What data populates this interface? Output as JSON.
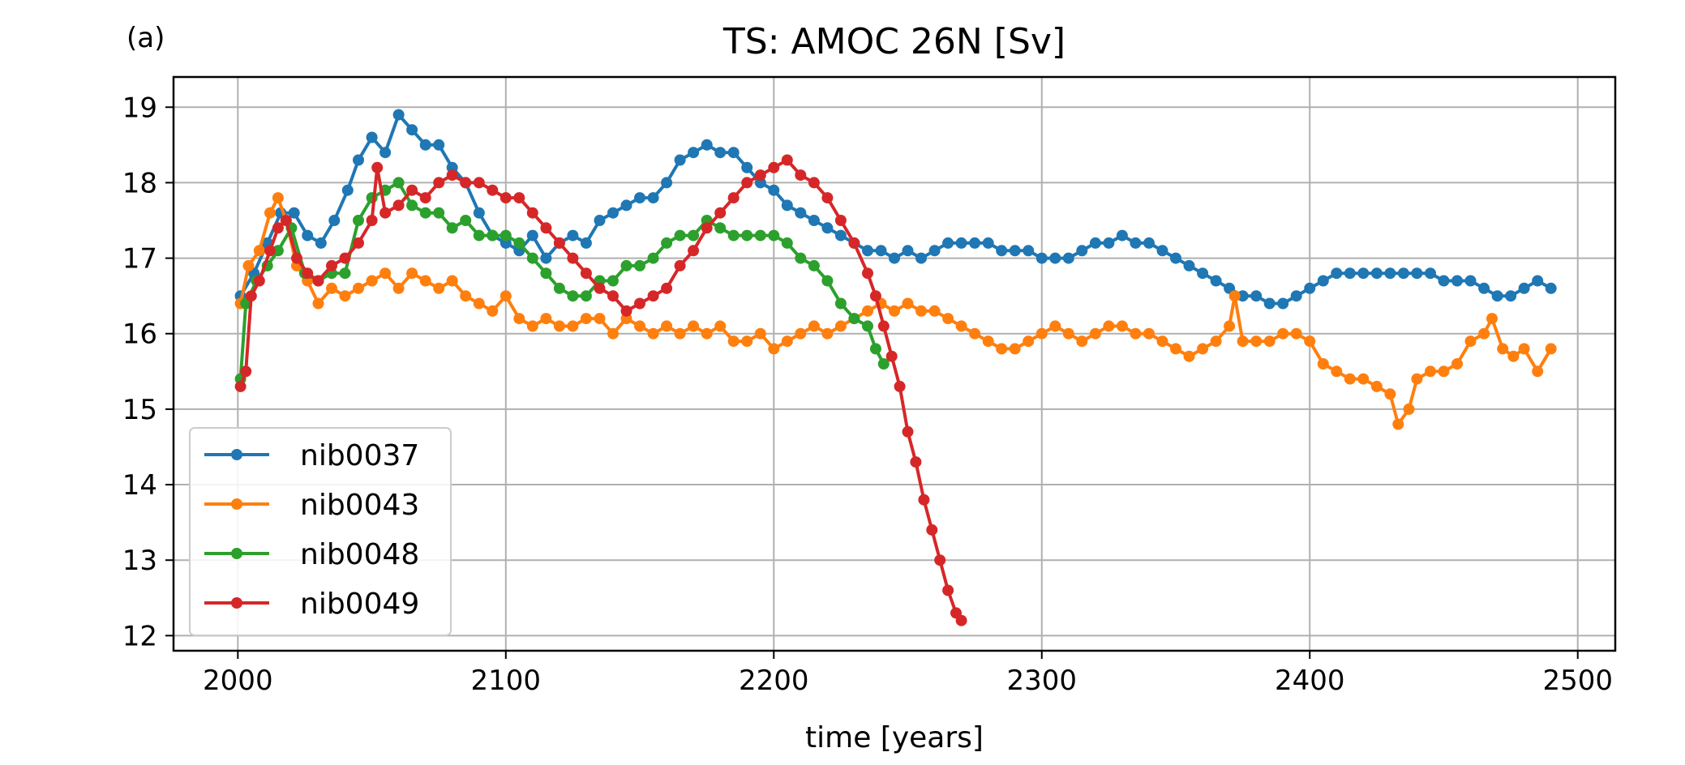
{
  "chart_data": {
    "type": "line",
    "panel_label": "(a)",
    "title": "TS: AMOC 26N [Sv]",
    "xlabel": "time [years]",
    "ylabel": "",
    "xlim": [
      1976,
      2514
    ],
    "ylim": [
      11.8,
      19.4
    ],
    "xticks": [
      2000,
      2100,
      2200,
      2300,
      2400,
      2500
    ],
    "yticks": [
      12,
      13,
      14,
      15,
      16,
      17,
      18,
      19
    ],
    "grid": true,
    "legend_position": "lower-left",
    "series": [
      {
        "name": "nib0037",
        "color": "#1f77b4",
        "points": [
          [
            2001,
            16.5
          ],
          [
            2006,
            16.8
          ],
          [
            2011,
            17.2
          ],
          [
            2016,
            17.6
          ],
          [
            2021,
            17.6
          ],
          [
            2026,
            17.3
          ],
          [
            2031,
            17.2
          ],
          [
            2036,
            17.5
          ],
          [
            2041,
            17.9
          ],
          [
            2045,
            18.3
          ],
          [
            2050,
            18.6
          ],
          [
            2055,
            18.4
          ],
          [
            2060,
            18.9
          ],
          [
            2065,
            18.7
          ],
          [
            2070,
            18.5
          ],
          [
            2075,
            18.5
          ],
          [
            2080,
            18.2
          ],
          [
            2085,
            18.0
          ],
          [
            2090,
            17.6
          ],
          [
            2095,
            17.3
          ],
          [
            2100,
            17.2
          ],
          [
            2105,
            17.1
          ],
          [
            2110,
            17.3
          ],
          [
            2115,
            17.0
          ],
          [
            2120,
            17.2
          ],
          [
            2125,
            17.3
          ],
          [
            2130,
            17.2
          ],
          [
            2135,
            17.5
          ],
          [
            2140,
            17.6
          ],
          [
            2145,
            17.7
          ],
          [
            2150,
            17.8
          ],
          [
            2155,
            17.8
          ],
          [
            2160,
            18.0
          ],
          [
            2165,
            18.3
          ],
          [
            2170,
            18.4
          ],
          [
            2175,
            18.5
          ],
          [
            2180,
            18.4
          ],
          [
            2185,
            18.4
          ],
          [
            2190,
            18.2
          ],
          [
            2195,
            18.0
          ],
          [
            2200,
            17.9
          ],
          [
            2205,
            17.7
          ],
          [
            2210,
            17.6
          ],
          [
            2215,
            17.5
          ],
          [
            2220,
            17.4
          ],
          [
            2225,
            17.3
          ],
          [
            2230,
            17.2
          ],
          [
            2235,
            17.1
          ],
          [
            2240,
            17.1
          ],
          [
            2245,
            17.0
          ],
          [
            2250,
            17.1
          ],
          [
            2255,
            17.0
          ],
          [
            2260,
            17.1
          ],
          [
            2265,
            17.2
          ],
          [
            2270,
            17.2
          ],
          [
            2275,
            17.2
          ],
          [
            2280,
            17.2
          ],
          [
            2285,
            17.1
          ],
          [
            2290,
            17.1
          ],
          [
            2295,
            17.1
          ],
          [
            2300,
            17.0
          ],
          [
            2305,
            17.0
          ],
          [
            2310,
            17.0
          ],
          [
            2315,
            17.1
          ],
          [
            2320,
            17.2
          ],
          [
            2325,
            17.2
          ],
          [
            2330,
            17.3
          ],
          [
            2335,
            17.2
          ],
          [
            2340,
            17.2
          ],
          [
            2345,
            17.1
          ],
          [
            2350,
            17.0
          ],
          [
            2355,
            16.9
          ],
          [
            2360,
            16.8
          ],
          [
            2365,
            16.7
          ],
          [
            2370,
            16.6
          ],
          [
            2375,
            16.5
          ],
          [
            2380,
            16.5
          ],
          [
            2385,
            16.4
          ],
          [
            2390,
            16.4
          ],
          [
            2395,
            16.5
          ],
          [
            2400,
            16.6
          ],
          [
            2405,
            16.7
          ],
          [
            2410,
            16.8
          ],
          [
            2415,
            16.8
          ],
          [
            2420,
            16.8
          ],
          [
            2425,
            16.8
          ],
          [
            2430,
            16.8
          ],
          [
            2435,
            16.8
          ],
          [
            2440,
            16.8
          ],
          [
            2445,
            16.8
          ],
          [
            2450,
            16.7
          ],
          [
            2455,
            16.7
          ],
          [
            2460,
            16.7
          ],
          [
            2465,
            16.6
          ],
          [
            2470,
            16.5
          ],
          [
            2475,
            16.5
          ],
          [
            2480,
            16.6
          ],
          [
            2485,
            16.7
          ],
          [
            2490,
            16.6
          ]
        ]
      },
      {
        "name": "nib0043",
        "color": "#ff7f0e",
        "points": [
          [
            2001,
            16.4
          ],
          [
            2004,
            16.9
          ],
          [
            2008,
            17.1
          ],
          [
            2012,
            17.6
          ],
          [
            2015,
            17.8
          ],
          [
            2018,
            17.5
          ],
          [
            2022,
            16.9
          ],
          [
            2026,
            16.7
          ],
          [
            2030,
            16.4
          ],
          [
            2035,
            16.6
          ],
          [
            2040,
            16.5
          ],
          [
            2045,
            16.6
          ],
          [
            2050,
            16.7
          ],
          [
            2055,
            16.8
          ],
          [
            2060,
            16.6
          ],
          [
            2065,
            16.8
          ],
          [
            2070,
            16.7
          ],
          [
            2075,
            16.6
          ],
          [
            2080,
            16.7
          ],
          [
            2085,
            16.5
          ],
          [
            2090,
            16.4
          ],
          [
            2095,
            16.3
          ],
          [
            2100,
            16.5
          ],
          [
            2105,
            16.2
          ],
          [
            2110,
            16.1
          ],
          [
            2115,
            16.2
          ],
          [
            2120,
            16.1
          ],
          [
            2125,
            16.1
          ],
          [
            2130,
            16.2
          ],
          [
            2135,
            16.2
          ],
          [
            2140,
            16.0
          ],
          [
            2145,
            16.2
          ],
          [
            2150,
            16.1
          ],
          [
            2155,
            16.0
          ],
          [
            2160,
            16.1
          ],
          [
            2165,
            16.0
          ],
          [
            2170,
            16.1
          ],
          [
            2175,
            16.0
          ],
          [
            2180,
            16.1
          ],
          [
            2185,
            15.9
          ],
          [
            2190,
            15.9
          ],
          [
            2195,
            16.0
          ],
          [
            2200,
            15.8
          ],
          [
            2205,
            15.9
          ],
          [
            2210,
            16.0
          ],
          [
            2215,
            16.1
          ],
          [
            2220,
            16.0
          ],
          [
            2225,
            16.1
          ],
          [
            2230,
            16.2
          ],
          [
            2235,
            16.3
          ],
          [
            2240,
            16.4
          ],
          [
            2245,
            16.3
          ],
          [
            2250,
            16.4
          ],
          [
            2255,
            16.3
          ],
          [
            2260,
            16.3
          ],
          [
            2265,
            16.2
          ],
          [
            2270,
            16.1
          ],
          [
            2275,
            16.0
          ],
          [
            2280,
            15.9
          ],
          [
            2285,
            15.8
          ],
          [
            2290,
            15.8
          ],
          [
            2295,
            15.9
          ],
          [
            2300,
            16.0
          ],
          [
            2305,
            16.1
          ],
          [
            2310,
            16.0
          ],
          [
            2315,
            15.9
          ],
          [
            2320,
            16.0
          ],
          [
            2325,
            16.1
          ],
          [
            2330,
            16.1
          ],
          [
            2335,
            16.0
          ],
          [
            2340,
            16.0
          ],
          [
            2345,
            15.9
          ],
          [
            2350,
            15.8
          ],
          [
            2355,
            15.7
          ],
          [
            2360,
            15.8
          ],
          [
            2365,
            15.9
          ],
          [
            2370,
            16.1
          ],
          [
            2372,
            16.5
          ],
          [
            2375,
            15.9
          ],
          [
            2380,
            15.9
          ],
          [
            2385,
            15.9
          ],
          [
            2390,
            16.0
          ],
          [
            2395,
            16.0
          ],
          [
            2400,
            15.9
          ],
          [
            2405,
            15.6
          ],
          [
            2410,
            15.5
          ],
          [
            2415,
            15.4
          ],
          [
            2420,
            15.4
          ],
          [
            2425,
            15.3
          ],
          [
            2430,
            15.2
          ],
          [
            2433,
            14.8
          ],
          [
            2437,
            15.0
          ],
          [
            2440,
            15.4
          ],
          [
            2445,
            15.5
          ],
          [
            2450,
            15.5
          ],
          [
            2455,
            15.6
          ],
          [
            2460,
            15.9
          ],
          [
            2465,
            16.0
          ],
          [
            2468,
            16.2
          ],
          [
            2472,
            15.8
          ],
          [
            2476,
            15.7
          ],
          [
            2480,
            15.8
          ],
          [
            2485,
            15.5
          ],
          [
            2490,
            15.8
          ]
        ]
      },
      {
        "name": "nib0048",
        "color": "#2ca02c",
        "points": [
          [
            2001,
            15.4
          ],
          [
            2003,
            16.4
          ],
          [
            2007,
            16.7
          ],
          [
            2011,
            16.9
          ],
          [
            2015,
            17.1
          ],
          [
            2020,
            17.4
          ],
          [
            2025,
            16.8
          ],
          [
            2030,
            16.7
          ],
          [
            2035,
            16.8
          ],
          [
            2040,
            16.8
          ],
          [
            2045,
            17.5
          ],
          [
            2050,
            17.8
          ],
          [
            2055,
            17.9
          ],
          [
            2060,
            18.0
          ],
          [
            2065,
            17.7
          ],
          [
            2070,
            17.6
          ],
          [
            2075,
            17.6
          ],
          [
            2080,
            17.4
          ],
          [
            2085,
            17.5
          ],
          [
            2090,
            17.3
          ],
          [
            2095,
            17.3
          ],
          [
            2100,
            17.3
          ],
          [
            2105,
            17.2
          ],
          [
            2110,
            17.0
          ],
          [
            2115,
            16.8
          ],
          [
            2120,
            16.6
          ],
          [
            2125,
            16.5
          ],
          [
            2130,
            16.5
          ],
          [
            2135,
            16.7
          ],
          [
            2140,
            16.7
          ],
          [
            2145,
            16.9
          ],
          [
            2150,
            16.9
          ],
          [
            2155,
            17.0
          ],
          [
            2160,
            17.2
          ],
          [
            2165,
            17.3
          ],
          [
            2170,
            17.3
          ],
          [
            2175,
            17.5
          ],
          [
            2180,
            17.4
          ],
          [
            2185,
            17.3
          ],
          [
            2190,
            17.3
          ],
          [
            2195,
            17.3
          ],
          [
            2200,
            17.3
          ],
          [
            2205,
            17.2
          ],
          [
            2210,
            17.0
          ],
          [
            2215,
            16.9
          ],
          [
            2220,
            16.7
          ],
          [
            2225,
            16.4
          ],
          [
            2230,
            16.2
          ],
          [
            2235,
            16.1
          ],
          [
            2238,
            15.8
          ],
          [
            2241,
            15.6
          ]
        ]
      },
      {
        "name": "nib0049",
        "color": "#d62728",
        "points": [
          [
            2001,
            15.3
          ],
          [
            2003,
            15.5
          ],
          [
            2005,
            16.5
          ],
          [
            2008,
            16.7
          ],
          [
            2012,
            17.1
          ],
          [
            2015,
            17.4
          ],
          [
            2018,
            17.5
          ],
          [
            2022,
            17.0
          ],
          [
            2026,
            16.8
          ],
          [
            2030,
            16.7
          ],
          [
            2035,
            16.9
          ],
          [
            2040,
            17.0
          ],
          [
            2045,
            17.2
          ],
          [
            2050,
            17.5
          ],
          [
            2052,
            18.2
          ],
          [
            2055,
            17.6
          ],
          [
            2060,
            17.7
          ],
          [
            2065,
            17.9
          ],
          [
            2070,
            17.8
          ],
          [
            2075,
            18.0
          ],
          [
            2080,
            18.1
          ],
          [
            2085,
            18.0
          ],
          [
            2090,
            18.0
          ],
          [
            2095,
            17.9
          ],
          [
            2100,
            17.8
          ],
          [
            2105,
            17.8
          ],
          [
            2110,
            17.6
          ],
          [
            2115,
            17.4
          ],
          [
            2120,
            17.2
          ],
          [
            2125,
            17.0
          ],
          [
            2130,
            16.8
          ],
          [
            2135,
            16.6
          ],
          [
            2140,
            16.5
          ],
          [
            2145,
            16.3
          ],
          [
            2150,
            16.4
          ],
          [
            2155,
            16.5
          ],
          [
            2160,
            16.6
          ],
          [
            2165,
            16.9
          ],
          [
            2170,
            17.1
          ],
          [
            2175,
            17.4
          ],
          [
            2180,
            17.6
          ],
          [
            2185,
            17.8
          ],
          [
            2190,
            18.0
          ],
          [
            2195,
            18.1
          ],
          [
            2200,
            18.2
          ],
          [
            2205,
            18.3
          ],
          [
            2210,
            18.1
          ],
          [
            2215,
            18.0
          ],
          [
            2220,
            17.8
          ],
          [
            2225,
            17.5
          ],
          [
            2230,
            17.2
          ],
          [
            2235,
            16.8
          ],
          [
            2238,
            16.5
          ],
          [
            2241,
            16.1
          ],
          [
            2244,
            15.7
          ],
          [
            2247,
            15.3
          ],
          [
            2250,
            14.7
          ],
          [
            2253,
            14.3
          ],
          [
            2256,
            13.8
          ],
          [
            2259,
            13.4
          ],
          [
            2262,
            13.0
          ],
          [
            2265,
            12.6
          ],
          [
            2268,
            12.3
          ],
          [
            2270,
            12.2
          ]
        ]
      }
    ]
  }
}
